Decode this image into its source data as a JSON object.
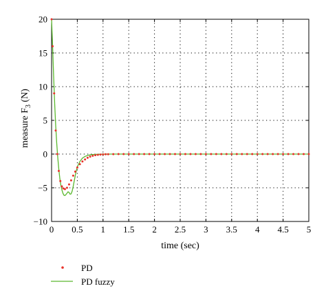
{
  "chart_data": {
    "type": "line",
    "title": "",
    "xlabel": "time (sec)",
    "ylabel_main": "measure F",
    "ylabel_sub": "3",
    "ylabel_unit": " (N)",
    "xlim": [
      0,
      5
    ],
    "ylim": [
      -10,
      20
    ],
    "x_ticks": [
      0,
      0.5,
      1,
      1.5,
      2,
      2.5,
      3,
      3.5,
      4,
      4.5,
      5
    ],
    "x_tick_labels": [
      "0",
      "0.5",
      "1",
      "1.5",
      "2",
      "2.5",
      "3",
      "3.5",
      "4",
      "4.5",
      "5"
    ],
    "y_ticks": [
      -10,
      -5,
      0,
      5,
      10,
      15,
      20
    ],
    "y_tick_labels": [
      "−10",
      "−5",
      "0",
      "5",
      "10",
      "15",
      "20"
    ],
    "grid": true,
    "legend_position": "bottom-left-outside",
    "series": [
      {
        "name": "PD",
        "style": "dots",
        "color": "#e8312a",
        "x": [
          0,
          0.02,
          0.05,
          0.08,
          0.11,
          0.14,
          0.17,
          0.2,
          0.23,
          0.26,
          0.3,
          0.34,
          0.38,
          0.42,
          0.46,
          0.5,
          0.55,
          0.6,
          0.65,
          0.7,
          0.75,
          0.8,
          0.85,
          0.9,
          0.95,
          1.0,
          1.05,
          1.1,
          1.2,
          1.3,
          1.4,
          1.5,
          1.6,
          1.7,
          1.8,
          1.9,
          2.0,
          2.1,
          2.2,
          2.3,
          2.4,
          2.5,
          2.6,
          2.7,
          2.8,
          2.9,
          3.0,
          3.1,
          3.2,
          3.3,
          3.4,
          3.5,
          3.6,
          3.7,
          3.8,
          3.9,
          4.0,
          4.1,
          4.2,
          4.3,
          4.4,
          4.5,
          4.6,
          4.7,
          4.8,
          4.9,
          5.0
        ],
        "y": [
          20,
          16,
          9,
          3.5,
          0,
          -2.5,
          -4,
          -4.8,
          -5.1,
          -5.2,
          -5,
          -4.5,
          -3.9,
          -3.2,
          -2.6,
          -2,
          -1.5,
          -1.1,
          -0.8,
          -0.55,
          -0.38,
          -0.25,
          -0.17,
          -0.11,
          -0.07,
          -0.05,
          -0.03,
          -0.02,
          -0.01,
          0,
          0,
          0,
          0,
          0,
          0,
          0,
          0,
          0,
          0,
          0,
          0,
          0,
          0,
          0,
          0,
          0,
          0,
          0,
          0,
          0,
          0,
          0,
          0,
          0,
          0,
          0,
          0,
          0,
          0,
          0,
          0,
          0,
          0,
          0,
          0,
          0,
          0
        ]
      },
      {
        "name": "PD fuzzy",
        "style": "line",
        "color": "#5ab82e",
        "x": [
          0,
          0.02,
          0.04,
          0.06,
          0.08,
          0.1,
          0.12,
          0.14,
          0.16,
          0.18,
          0.2,
          0.22,
          0.24,
          0.26,
          0.28,
          0.3,
          0.32,
          0.34,
          0.36,
          0.38,
          0.4,
          0.42,
          0.44,
          0.46,
          0.48,
          0.5,
          0.55,
          0.6,
          0.65,
          0.7,
          0.75,
          0.8,
          0.9,
          1.0,
          1.2,
          1.5,
          2.0,
          3.0,
          4.0,
          5.0
        ],
        "y": [
          20,
          16,
          11.5,
          7.5,
          4.2,
          1.6,
          -0.5,
          -2.2,
          -3.6,
          -4.6,
          -5.3,
          -5.8,
          -6.1,
          -6.15,
          -6.0,
          -5.8,
          -5.6,
          -5.7,
          -5.95,
          -5.9,
          -5.5,
          -4.8,
          -4.0,
          -3.2,
          -2.5,
          -1.9,
          -1.1,
          -0.6,
          -0.35,
          -0.2,
          -0.12,
          -0.07,
          -0.03,
          -0.01,
          0,
          0,
          0,
          0,
          0,
          0
        ]
      }
    ]
  }
}
